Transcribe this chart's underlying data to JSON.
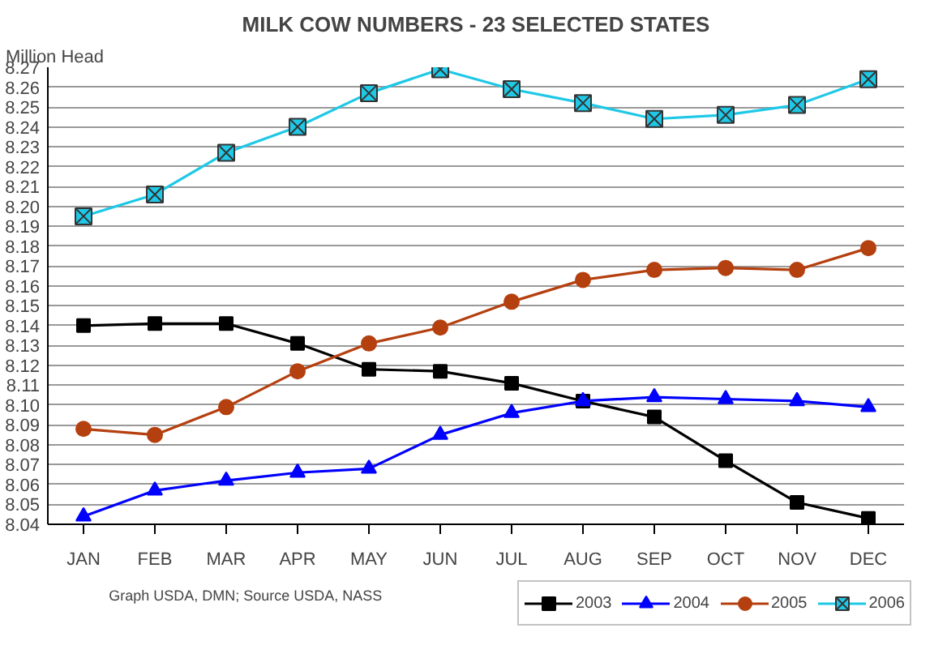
{
  "chart_data": {
    "type": "line",
    "title": "MILK COW NUMBERS - 23 SELECTED STATES",
    "ylabel": "Million Head",
    "categories": [
      "JAN",
      "FEB",
      "MAR",
      "APR",
      "MAY",
      "JUN",
      "JUL",
      "AUG",
      "SEP",
      "OCT",
      "NOV",
      "DEC"
    ],
    "series": [
      {
        "name": "2003",
        "color": "#000000",
        "marker": "square",
        "values": [
          8.14,
          8.141,
          8.141,
          8.131,
          8.118,
          8.117,
          8.111,
          8.102,
          8.094,
          8.072,
          8.051,
          8.043
        ]
      },
      {
        "name": "2004",
        "color": "#0000ff",
        "marker": "triangle",
        "values": [
          8.044,
          8.057,
          8.062,
          8.066,
          8.068,
          8.085,
          8.096,
          8.102,
          8.104,
          8.103,
          8.102,
          8.099
        ]
      },
      {
        "name": "2005",
        "color": "#b5400f",
        "marker": "circle",
        "values": [
          8.088,
          8.085,
          8.099,
          8.117,
          8.131,
          8.139,
          8.152,
          8.163,
          8.168,
          8.169,
          8.168,
          8.179
        ]
      },
      {
        "name": "2006",
        "color": "#1ec8e6",
        "marker": "cross",
        "values": [
          8.195,
          8.206,
          8.227,
          8.24,
          8.257,
          8.269,
          8.259,
          8.252,
          8.244,
          8.246,
          8.251,
          8.264
        ]
      }
    ],
    "ylim": [
      8.04,
      8.27
    ],
    "yticks": [
      8.04,
      8.05,
      8.06,
      8.07,
      8.08,
      8.09,
      {
        "value": 8.1,
        "label": "8.10"
      },
      8.11,
      8.12,
      8.13,
      8.14,
      8.15,
      8.16,
      8.17,
      8.18,
      8.19,
      {
        "value": 8.2,
        "label": "8.20"
      },
      8.21,
      8.22,
      8.23,
      8.24,
      8.25,
      8.26,
      8.27
    ],
    "grid": "y",
    "legend": "bottom right",
    "annotations": [
      "Graph USDA, DMN; Source USDA, NASS"
    ]
  }
}
